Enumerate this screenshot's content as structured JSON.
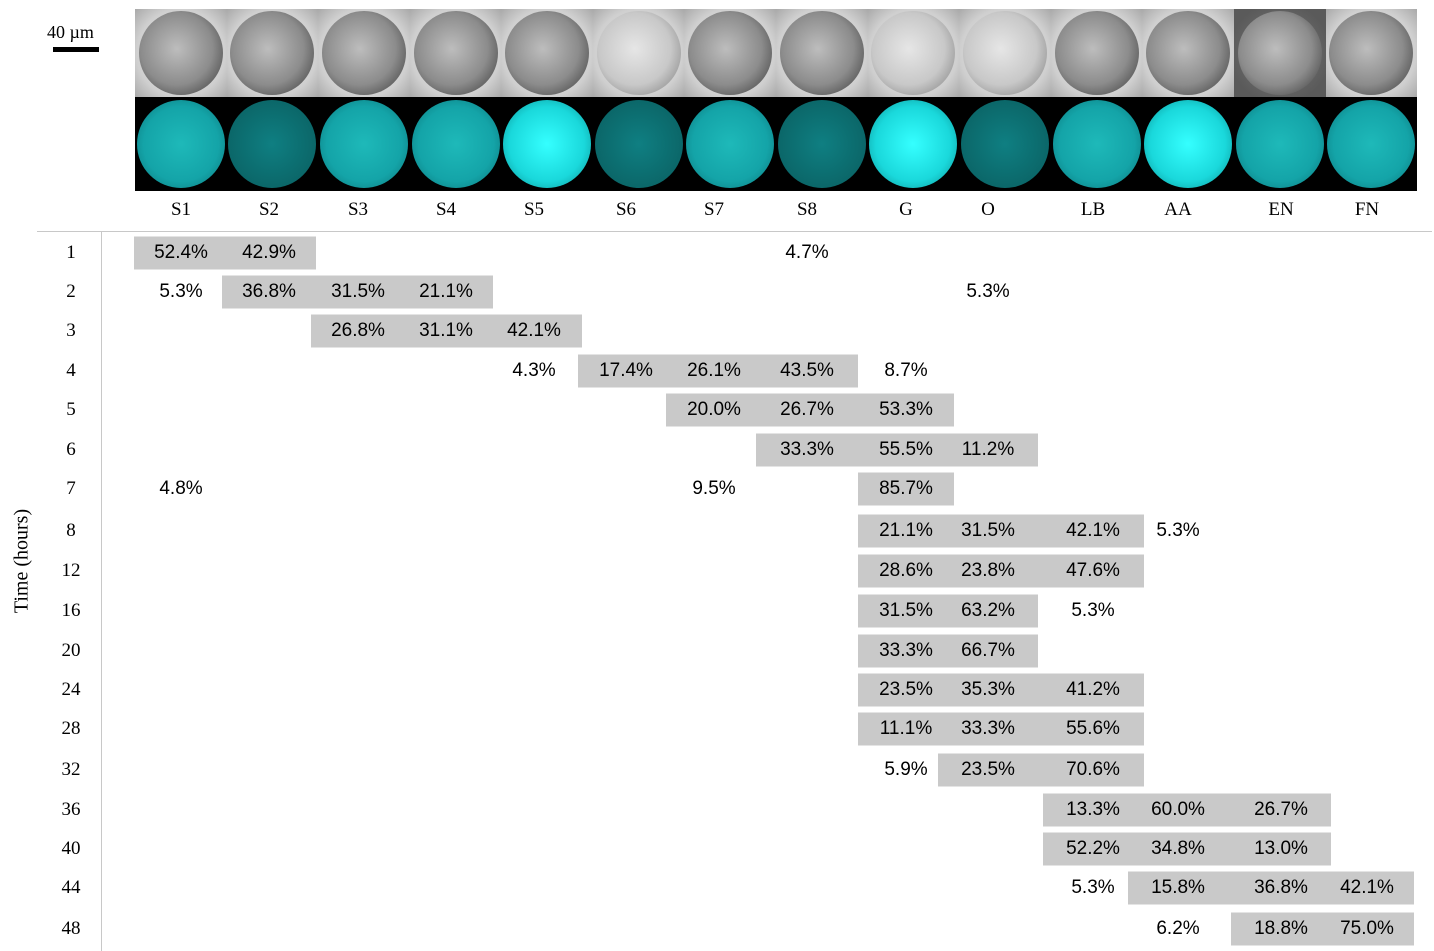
{
  "scale_bar": {
    "label": "40 µm"
  },
  "stages": [
    "S1",
    "S2",
    "S3",
    "S4",
    "S5",
    "S6",
    "S7",
    "S8",
    "G",
    "O",
    "LB",
    "AA",
    "EN",
    "FN"
  ],
  "y_axis_title": "Time (hours)",
  "colors": {
    "highlight_bar": "#c9c9c9",
    "fluorescence": "#1ac8cc"
  },
  "chart_data": {
    "type": "table",
    "columns": [
      "S1",
      "S2",
      "S3",
      "S4",
      "S5",
      "S6",
      "S7",
      "S8",
      "G",
      "O",
      "LB",
      "AA",
      "EN",
      "FN"
    ],
    "ylabel": "Time (hours)",
    "rows": [
      {
        "time": "1",
        "cells": [
          {
            "stage": "S1",
            "value": "52.4%"
          },
          {
            "stage": "S2",
            "value": "42.9%"
          },
          {
            "stage": "S8",
            "value": "4.7%"
          }
        ]
      },
      {
        "time": "2",
        "cells": [
          {
            "stage": "S1",
            "value": "5.3%"
          },
          {
            "stage": "S2",
            "value": "36.8%"
          },
          {
            "stage": "S3",
            "value": "31.5%"
          },
          {
            "stage": "S4",
            "value": "21.1%"
          },
          {
            "stage": "O",
            "value": "5.3%"
          }
        ]
      },
      {
        "time": "3",
        "cells": [
          {
            "stage": "S3",
            "value": "26.8%"
          },
          {
            "stage": "S4",
            "value": "31.1%"
          },
          {
            "stage": "S5",
            "value": "42.1%"
          }
        ]
      },
      {
        "time": "4",
        "cells": [
          {
            "stage": "S5",
            "value": "4.3%"
          },
          {
            "stage": "S6",
            "value": "17.4%"
          },
          {
            "stage": "S7",
            "value": "26.1%"
          },
          {
            "stage": "S8",
            "value": "43.5%"
          },
          {
            "stage": "G",
            "value": "8.7%"
          }
        ]
      },
      {
        "time": "5",
        "cells": [
          {
            "stage": "S7",
            "value": "20.0%"
          },
          {
            "stage": "S8",
            "value": "26.7%"
          },
          {
            "stage": "G",
            "value": "53.3%"
          }
        ]
      },
      {
        "time": "6",
        "cells": [
          {
            "stage": "S8",
            "value": "33.3%"
          },
          {
            "stage": "G",
            "value": "55.5%"
          },
          {
            "stage": "O",
            "value": "11.2%"
          }
        ]
      },
      {
        "time": "7",
        "cells": [
          {
            "stage": "S1",
            "value": "4.8%"
          },
          {
            "stage": "S7",
            "value": "9.5%"
          },
          {
            "stage": "G",
            "value": "85.7%"
          }
        ]
      },
      {
        "time": "8",
        "cells": [
          {
            "stage": "G",
            "value": "21.1%"
          },
          {
            "stage": "O",
            "value": "31.5%"
          },
          {
            "stage": "LB",
            "value": "42.1%"
          },
          {
            "stage": "AA",
            "value": "5.3%"
          }
        ]
      },
      {
        "time": "12",
        "cells": [
          {
            "stage": "G",
            "value": "28.6%"
          },
          {
            "stage": "O",
            "value": "23.8%"
          },
          {
            "stage": "LB",
            "value": "47.6%"
          }
        ]
      },
      {
        "time": "16",
        "cells": [
          {
            "stage": "G",
            "value": "31.5%"
          },
          {
            "stage": "O",
            "value": "63.2%"
          },
          {
            "stage": "LB",
            "value": "5.3%"
          }
        ]
      },
      {
        "time": "20",
        "cells": [
          {
            "stage": "G",
            "value": "33.3%"
          },
          {
            "stage": "O",
            "value": "66.7%"
          }
        ]
      },
      {
        "time": "24",
        "cells": [
          {
            "stage": "G",
            "value": "23.5%"
          },
          {
            "stage": "O",
            "value": "35.3%"
          },
          {
            "stage": "LB",
            "value": "41.2%"
          }
        ]
      },
      {
        "time": "28",
        "cells": [
          {
            "stage": "G",
            "value": "11.1%"
          },
          {
            "stage": "O",
            "value": "33.3%"
          },
          {
            "stage": "LB",
            "value": "55.6%"
          }
        ]
      },
      {
        "time": "32",
        "cells": [
          {
            "stage": "G",
            "value": "5.9%"
          },
          {
            "stage": "O",
            "value": "23.5%"
          },
          {
            "stage": "LB",
            "value": "70.6%"
          }
        ]
      },
      {
        "time": "36",
        "cells": [
          {
            "stage": "LB",
            "value": "13.3%"
          },
          {
            "stage": "AA",
            "value": "60.0%"
          },
          {
            "stage": "EN",
            "value": "26.7%"
          }
        ]
      },
      {
        "time": "40",
        "cells": [
          {
            "stage": "LB",
            "value": "52.2%"
          },
          {
            "stage": "AA",
            "value": "34.8%"
          },
          {
            "stage": "EN",
            "value": "13.0%"
          }
        ]
      },
      {
        "time": "44",
        "cells": [
          {
            "stage": "LB",
            "value": "5.3%"
          },
          {
            "stage": "AA",
            "value": "15.8%"
          },
          {
            "stage": "EN",
            "value": "36.8%"
          },
          {
            "stage": "FN",
            "value": "42.1%"
          }
        ]
      },
      {
        "time": "48",
        "cells": [
          {
            "stage": "AA",
            "value": "6.2%"
          },
          {
            "stage": "EN",
            "value": "18.8%"
          },
          {
            "stage": "FN",
            "value": "75.0%"
          }
        ]
      }
    ]
  }
}
